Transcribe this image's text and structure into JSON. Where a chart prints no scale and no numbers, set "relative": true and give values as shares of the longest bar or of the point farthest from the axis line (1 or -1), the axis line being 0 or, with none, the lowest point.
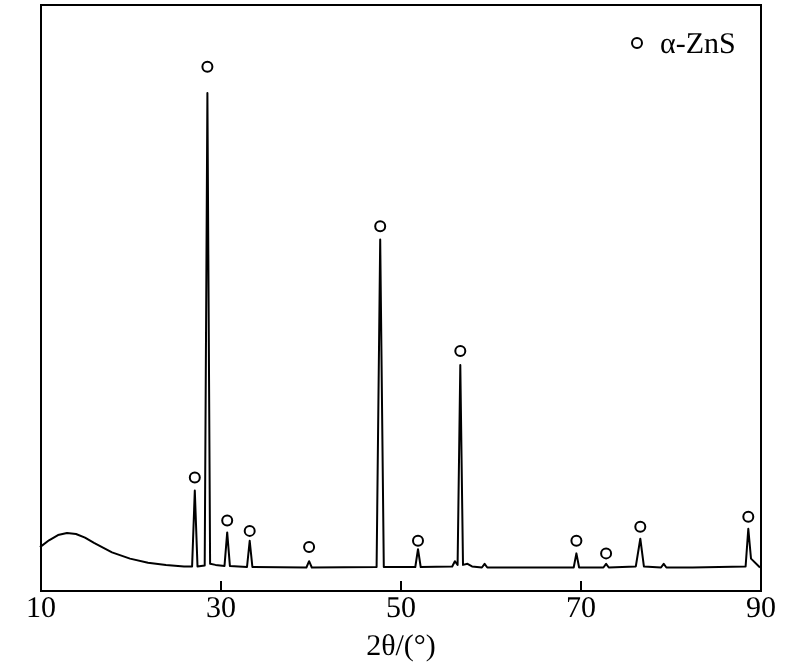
{
  "chart_data": {
    "type": "line",
    "xlabel": "2θ/(°)",
    "relative": true,
    "xlim": [
      10,
      90
    ],
    "xticks": [
      10,
      30,
      50,
      70,
      90
    ],
    "legend": "top right",
    "series": [
      {
        "color": "#000000",
        "marker": "none",
        "x": [
          10,
          11,
          12,
          13,
          14,
          15,
          16,
          18,
          20,
          22,
          24,
          26,
          26.9,
          27.2,
          27.5,
          28.3,
          28.6,
          28.9,
          29.5,
          30.5,
          30.8,
          31.1,
          33.0,
          33.3,
          33.6,
          39.6,
          39.9,
          40.2,
          47.4,
          47.8,
          48.2,
          51.7,
          52.0,
          52.3,
          55.8,
          56.1,
          56.4,
          56.7,
          57.0,
          57.5,
          58.0,
          59.1,
          59.4,
          59.7,
          64,
          69.3,
          69.6,
          69.9,
          72.6,
          72.9,
          73.2,
          76.2,
          76.7,
          77.1,
          79.0,
          79.3,
          79.6,
          82.5,
          88.4,
          88.7,
          89.0,
          90
        ],
        "values": [
          0.082,
          0.095,
          0.105,
          0.109,
          0.107,
          0.1,
          0.09,
          0.072,
          0.06,
          0.052,
          0.048,
          0.045,
          0.045,
          0.19,
          0.045,
          0.047,
          0.95,
          0.05,
          0.048,
          0.046,
          0.11,
          0.046,
          0.044,
          0.094,
          0.044,
          0.043,
          0.055,
          0.043,
          0.044,
          0.67,
          0.044,
          0.044,
          0.078,
          0.044,
          0.045,
          0.055,
          0.048,
          0.43,
          0.048,
          0.05,
          0.045,
          0.043,
          0.05,
          0.043,
          0.043,
          0.043,
          0.07,
          0.043,
          0.043,
          0.05,
          0.043,
          0.045,
          0.098,
          0.045,
          0.043,
          0.05,
          0.043,
          0.043,
          0.045,
          0.117,
          0.06,
          0.043
        ]
      },
      {
        "type": "scatter",
        "name": "α-ZnS",
        "color": "#000000",
        "marker": "circle",
        "x": [
          27.2,
          28.6,
          30.8,
          33.3,
          39.9,
          47.8,
          52.0,
          56.7,
          69.6,
          72.9,
          76.7,
          88.7
        ],
        "values": [
          0.215,
          1,
          0.133,
          0.113,
          0.082,
          0.695,
          0.094,
          0.457,
          0.094,
          0.07,
          0.121,
          0.14
        ]
      }
    ]
  }
}
